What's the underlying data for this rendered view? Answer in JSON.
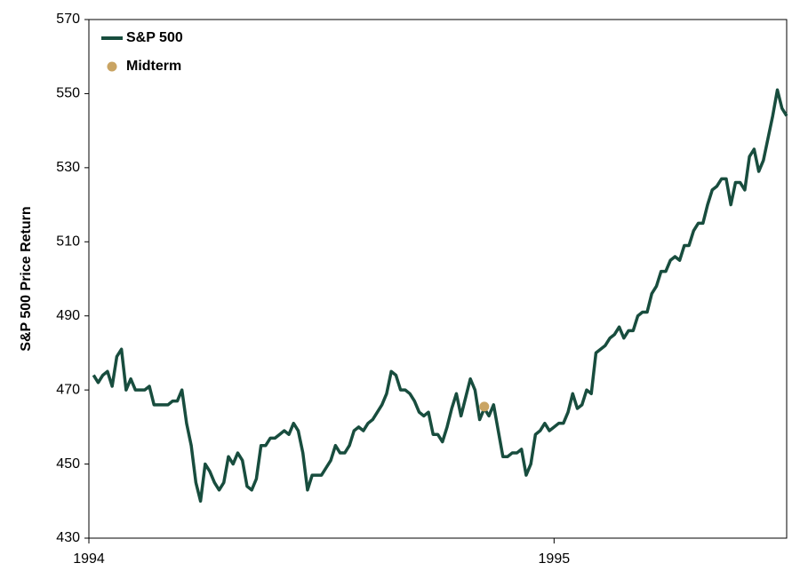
{
  "chart_data": {
    "type": "line",
    "y_label": "S&P 500 Price Return",
    "xlim": [
      1994,
      1995.5
    ],
    "xticks": [
      1994,
      1995
    ],
    "ylim": [
      430,
      570
    ],
    "yticks": [
      430,
      450,
      470,
      490,
      510,
      530,
      550,
      570
    ],
    "legend": "top-left",
    "series": [
      {
        "name": "S&P 500",
        "color": "#184d3e",
        "x": [
          1994.01,
          1994.02,
          1994.03,
          1994.04,
          1994.05,
          1994.06,
          1994.07,
          1994.08,
          1994.09,
          1994.1,
          1994.11,
          1994.12,
          1994.13,
          1994.14,
          1994.15,
          1994.16,
          1994.17,
          1994.18,
          1994.19,
          1994.2,
          1994.21,
          1994.22,
          1994.23,
          1994.24,
          1994.25,
          1994.26,
          1994.27,
          1994.28,
          1994.29,
          1994.3,
          1994.31,
          1994.32,
          1994.33,
          1994.34,
          1994.35,
          1994.36,
          1994.37,
          1994.38,
          1994.39,
          1994.4,
          1994.41,
          1994.42,
          1994.43,
          1994.44,
          1994.45,
          1994.46,
          1994.47,
          1994.48,
          1994.49,
          1994.5,
          1994.51,
          1994.52,
          1994.53,
          1994.54,
          1994.55,
          1994.56,
          1994.57,
          1994.58,
          1994.59,
          1994.6,
          1994.61,
          1994.62,
          1994.63,
          1994.64,
          1994.65,
          1994.66,
          1994.67,
          1994.68,
          1994.69,
          1994.7,
          1994.71,
          1994.72,
          1994.73,
          1994.74,
          1994.75,
          1994.76,
          1994.77,
          1994.78,
          1994.79,
          1994.8,
          1994.81,
          1994.82,
          1994.83,
          1994.84,
          1994.85,
          1994.86,
          1994.87,
          1994.88,
          1994.89,
          1994.9,
          1994.91,
          1994.92,
          1994.93,
          1994.94,
          1994.95,
          1994.96,
          1994.97,
          1994.98,
          1994.99,
          1995.0,
          1995.01,
          1995.02,
          1995.03,
          1995.04,
          1995.05,
          1995.06,
          1995.07,
          1995.08,
          1995.09,
          1995.1,
          1995.11,
          1995.12,
          1995.13,
          1995.14,
          1995.15,
          1995.16,
          1995.17,
          1995.18,
          1995.19,
          1995.2,
          1995.21,
          1995.22,
          1995.23,
          1995.24,
          1995.25,
          1995.26,
          1995.27,
          1995.28,
          1995.29,
          1995.3,
          1995.31,
          1995.32,
          1995.33,
          1995.34,
          1995.35,
          1995.36,
          1995.37,
          1995.38,
          1995.39,
          1995.4,
          1995.41,
          1995.42,
          1995.43,
          1995.44,
          1995.45,
          1995.46,
          1995.47,
          1995.48,
          1995.49,
          1995.5
        ],
        "values": [
          474,
          472,
          474,
          475,
          471,
          479,
          481,
          470,
          473,
          470,
          470,
          470,
          471,
          466,
          466,
          466,
          466,
          467,
          467,
          470,
          461,
          455,
          445,
          440,
          450,
          448,
          445,
          443,
          445,
          452,
          450,
          453,
          451,
          444,
          443,
          446,
          455,
          455,
          457,
          457,
          458,
          459,
          458,
          461,
          459,
          453,
          443,
          447,
          447,
          447,
          449,
          451,
          455,
          453,
          453,
          455,
          459,
          460,
          459,
          461,
          462,
          464,
          466,
          469,
          475,
          474,
          470,
          470,
          469,
          467,
          464,
          463,
          464,
          458,
          458,
          456,
          460,
          465,
          469,
          463,
          468,
          473,
          470,
          462,
          465,
          463,
          466,
          459,
          452,
          452,
          453,
          453,
          454,
          447,
          450,
          458,
          459,
          461,
          459,
          460,
          461,
          461,
          464,
          469,
          465,
          466,
          470,
          469,
          480,
          481,
          482,
          484,
          485,
          487,
          484,
          486,
          486,
          490,
          491,
          491,
          496,
          498,
          502,
          502,
          505,
          506,
          505,
          509,
          509,
          513,
          515,
          515,
          520,
          524,
          525,
          527,
          527,
          520,
          526,
          526,
          524,
          533,
          535,
          529,
          532,
          538,
          544,
          551,
          546,
          544
        ]
      },
      {
        "name": "Midterm",
        "color": "#c9a463",
        "x": [
          1994.85
        ],
        "values": [
          465.5
        ]
      }
    ]
  }
}
